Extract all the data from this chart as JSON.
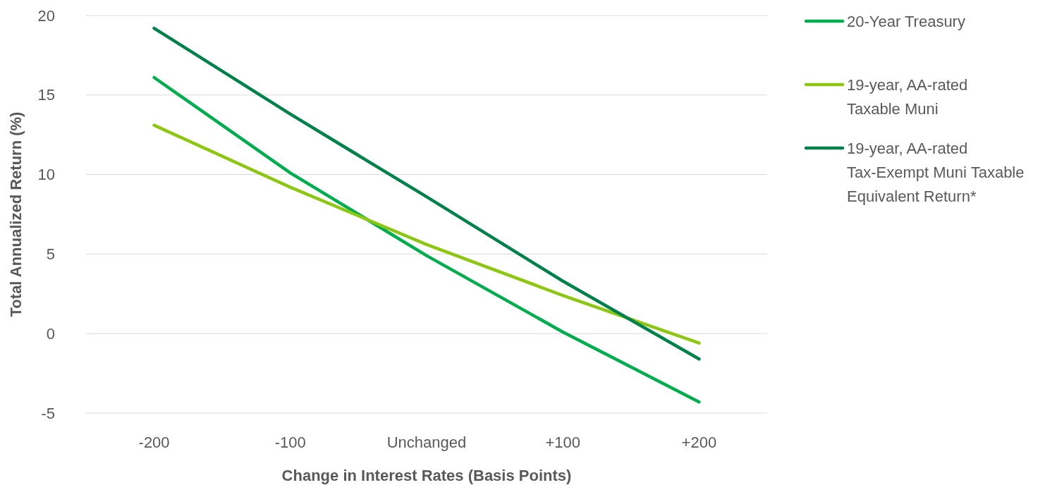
{
  "chart_data": {
    "type": "line",
    "xlabel": "Change in Interest Rates (Basis Points)",
    "ylabel": "Total Annualized Return (%)",
    "categories": [
      "-200",
      "-100",
      "Unchanged",
      "+100",
      "+200"
    ],
    "series": [
      {
        "name": "20-Year Treasury",
        "color": "#00ad4e",
        "values": [
          16.1,
          10.1,
          4.9,
          0.1,
          -4.3
        ]
      },
      {
        "name": "19-year, AA-rated Taxable Muni",
        "color": "#8dc714",
        "values": [
          13.1,
          9.2,
          5.6,
          2.4,
          -0.6
        ]
      },
      {
        "name": "19-year, AA-rated Tax-Exempt Muni Taxable Equivalent Return*",
        "color": "#00804a",
        "values": [
          19.2,
          13.8,
          8.6,
          3.3,
          -1.6
        ]
      }
    ],
    "ylim": [
      -5,
      20
    ],
    "yticks": [
      -5,
      0,
      5,
      10,
      15,
      20
    ],
    "grid": "y",
    "legend": "right",
    "marker": "none",
    "line_style": "solid"
  }
}
